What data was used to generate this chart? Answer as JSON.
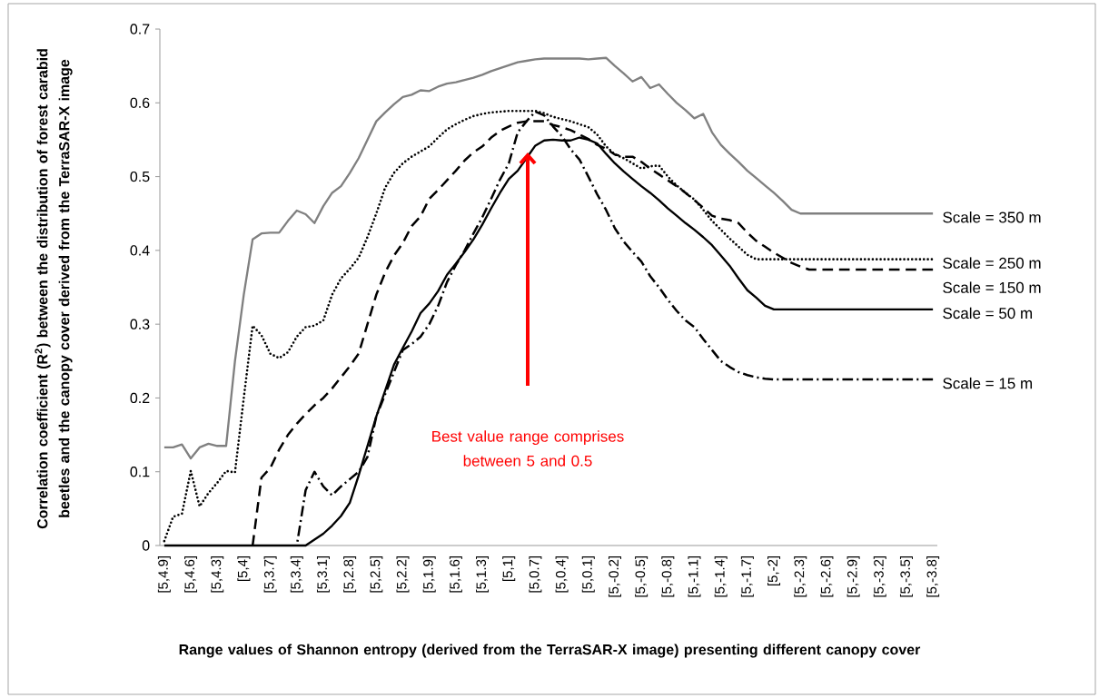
{
  "chart_data": {
    "type": "line",
    "xlabel": "Range values of Shannon entropy (derived from the TerraSAR-X image) presenting different canopy cover",
    "ylabel": "Correlation coefficient (R$^{2}$) between the distribution of forest carabid beetles and the canopy cover derived from the TerraSAR-X image",
    "categories": [
      "[5,4.9]",
      null,
      null,
      "[5,4.6]",
      null,
      null,
      "[5,4.3]",
      null,
      null,
      "[5,4]",
      null,
      null,
      "[5,3.7]",
      null,
      null,
      "[5,3.4]",
      null,
      null,
      "[5,3.1]",
      null,
      null,
      "[5,2.8]",
      null,
      null,
      "[5,2.5]",
      null,
      null,
      "[5,2.2]",
      null,
      null,
      "[5,1.9]",
      null,
      null,
      "[5,1.6]",
      null,
      null,
      "[5,1.3]",
      null,
      null,
      "[5,1]",
      null,
      null,
      "[5,0.7]",
      null,
      null,
      "[5,0.4]",
      null,
      null,
      "[5,0.1]",
      null,
      null,
      "[5,-0.2]",
      null,
      null,
      "[5,-0.5]",
      null,
      null,
      "[5,-0.8]",
      null,
      null,
      "[5,-1.1]",
      null,
      null,
      "[5,-1.4]",
      null,
      null,
      "[5,-1.7]",
      null,
      null,
      "[5,-2]",
      null,
      null,
      "[5,-2.3]",
      null,
      null,
      "[5,-2.6]",
      null,
      null,
      "[5,-2.9]",
      null,
      null,
      "[5,-3.2]",
      null,
      null,
      "[5,-3.5]",
      null,
      null,
      "[5,-3.8]"
    ],
    "series": [
      {
        "name": "Scale = 350 m",
        "color": "#808080",
        "line_style": "solid",
        "values": [
          0.133,
          0.133,
          0.137,
          0.118,
          0.133,
          0.138,
          0.135,
          0.135,
          0.25,
          0.34,
          0.415,
          0.423,
          0.424,
          0.424,
          0.44,
          0.454,
          0.449,
          0.437,
          0.46,
          0.478,
          0.487,
          0.505,
          0.525,
          0.55,
          0.575,
          0.587,
          0.598,
          0.608,
          0.611,
          0.617,
          0.616,
          0.622,
          0.626,
          0.628,
          0.631,
          0.634,
          0.638,
          0.643,
          0.647,
          0.651,
          0.655,
          0.657,
          0.659,
          0.66,
          0.66,
          0.66,
          0.66,
          0.66,
          0.659,
          0.66,
          0.661,
          0.65,
          0.64,
          0.629,
          0.635,
          0.62,
          0.625,
          0.612,
          0.6,
          0.59,
          0.579,
          0.585,
          0.56,
          0.543,
          0.531,
          0.52,
          0.508,
          0.498,
          0.488,
          0.478,
          0.467,
          0.455,
          0.45,
          0.45,
          0.45,
          0.45,
          0.45,
          0.45,
          0.45,
          0.45,
          0.45,
          0.45,
          0.45,
          0.45,
          0.45,
          0.45,
          0.45,
          0.45
        ]
      },
      {
        "name": "Scale = 250 m",
        "color": "#000000",
        "line_style": "dotted",
        "values": [
          0.006,
          0.039,
          0.043,
          0.101,
          0.053,
          0.071,
          0.085,
          0.101,
          0.099,
          0.2,
          0.298,
          0.285,
          0.26,
          0.254,
          0.262,
          0.283,
          0.296,
          0.298,
          0.305,
          0.34,
          0.362,
          0.375,
          0.39,
          0.418,
          0.45,
          0.485,
          0.505,
          0.518,
          0.527,
          0.534,
          0.541,
          0.553,
          0.564,
          0.571,
          0.577,
          0.582,
          0.585,
          0.587,
          0.588,
          0.589,
          0.589,
          0.589,
          0.589,
          0.586,
          0.581,
          0.578,
          0.575,
          0.571,
          0.567,
          0.557,
          0.541,
          0.53,
          0.525,
          0.518,
          0.511,
          0.514,
          0.515,
          0.5,
          0.488,
          0.478,
          0.469,
          0.455,
          0.44,
          0.428,
          0.416,
          0.405,
          0.394,
          0.388,
          0.388,
          0.388,
          0.388,
          0.388,
          0.388,
          0.388,
          0.388,
          0.388,
          0.388,
          0.388,
          0.388,
          0.388,
          0.388,
          0.388,
          0.388,
          0.388,
          0.388,
          0.388,
          0.388,
          0.388
        ]
      },
      {
        "name": "Scale = 150 m",
        "color": "#000000",
        "line_style": "dashed",
        "values": [
          null,
          null,
          null,
          null,
          null,
          null,
          null,
          null,
          null,
          null,
          0,
          0.092,
          0.105,
          0.13,
          0.15,
          0.165,
          0.178,
          0.19,
          0.2,
          0.213,
          0.228,
          0.243,
          0.26,
          0.3,
          0.34,
          0.37,
          0.393,
          0.41,
          0.433,
          0.446,
          0.47,
          0.482,
          0.495,
          0.508,
          0.522,
          0.533,
          0.541,
          0.553,
          0.562,
          0.568,
          0.573,
          0.575,
          0.575,
          0.575,
          0.57,
          0.567,
          0.563,
          0.557,
          0.551,
          0.543,
          0.538,
          0.53,
          0.527,
          0.527,
          0.52,
          0.511,
          0.503,
          0.495,
          0.487,
          0.478,
          0.468,
          0.458,
          0.447,
          0.443,
          0.441,
          0.437,
          0.424,
          0.413,
          0.405,
          0.397,
          0.39,
          0.383,
          0.378,
          0.374,
          0.374,
          0.374,
          0.374,
          0.374,
          0.374,
          0.374,
          0.374,
          0.374,
          0.374,
          0.374,
          0.374,
          0.374,
          0.374,
          0.374
        ]
      },
      {
        "name": "Scale = 50 m",
        "color": "#000000",
        "line_style": "solid",
        "values": [
          0,
          0,
          0,
          0,
          0,
          0,
          0,
          0,
          0,
          0,
          0,
          0,
          0,
          0,
          0,
          0,
          0,
          0.008,
          0.016,
          0.027,
          0.04,
          0.058,
          0.095,
          0.135,
          0.175,
          0.21,
          0.245,
          0.268,
          0.29,
          0.315,
          0.328,
          0.345,
          0.367,
          0.382,
          0.398,
          0.415,
          0.435,
          0.457,
          0.478,
          0.497,
          0.508,
          0.525,
          0.542,
          0.549,
          0.55,
          0.549,
          0.549,
          0.553,
          0.55,
          0.545,
          0.531,
          0.518,
          0.507,
          0.497,
          0.487,
          0.478,
          0.468,
          0.457,
          0.447,
          0.437,
          0.428,
          0.418,
          0.407,
          0.393,
          0.379,
          0.362,
          0.346,
          0.336,
          0.325,
          0.32,
          0.32,
          0.32,
          0.32,
          0.32,
          0.32,
          0.32,
          0.32,
          0.32,
          0.32,
          0.32,
          0.32,
          0.32,
          0.32,
          0.32,
          0.32,
          0.32,
          0.32,
          0.32
        ]
      },
      {
        "name": "Scale = 15 m",
        "color": "#000000",
        "line_style": "dashdot",
        "values": [
          null,
          null,
          null,
          null,
          null,
          null,
          null,
          null,
          null,
          null,
          null,
          null,
          null,
          null,
          null,
          0,
          0.075,
          0.1,
          0.08,
          0.068,
          0.08,
          0.09,
          0.1,
          0.12,
          0.175,
          0.205,
          0.235,
          0.265,
          0.273,
          0.283,
          0.3,
          0.325,
          0.357,
          0.38,
          0.4,
          0.423,
          0.445,
          0.47,
          0.496,
          0.518,
          0.56,
          0.575,
          0.588,
          0.583,
          0.568,
          0.555,
          0.537,
          0.523,
          0.5,
          0.476,
          0.455,
          0.43,
          0.412,
          0.398,
          0.385,
          0.365,
          0.35,
          0.333,
          0.318,
          0.305,
          0.296,
          0.28,
          0.265,
          0.25,
          0.242,
          0.235,
          0.231,
          0.228,
          0.226,
          0.225,
          0.225,
          0.225,
          0.225,
          0.225,
          0.225,
          0.225,
          0.225,
          0.225,
          0.225,
          0.225,
          0.225,
          0.225,
          0.225,
          0.225,
          0.225,
          0.225,
          0.225,
          0.225
        ]
      }
    ],
    "ylim": [
      0,
      0.7
    ],
    "yticks": [
      0,
      0.1,
      0.2,
      0.3,
      0.4,
      0.5,
      0.6,
      0.7
    ],
    "annotations": [
      "Best value range comprises between 5 and 0.5"
    ]
  }
}
